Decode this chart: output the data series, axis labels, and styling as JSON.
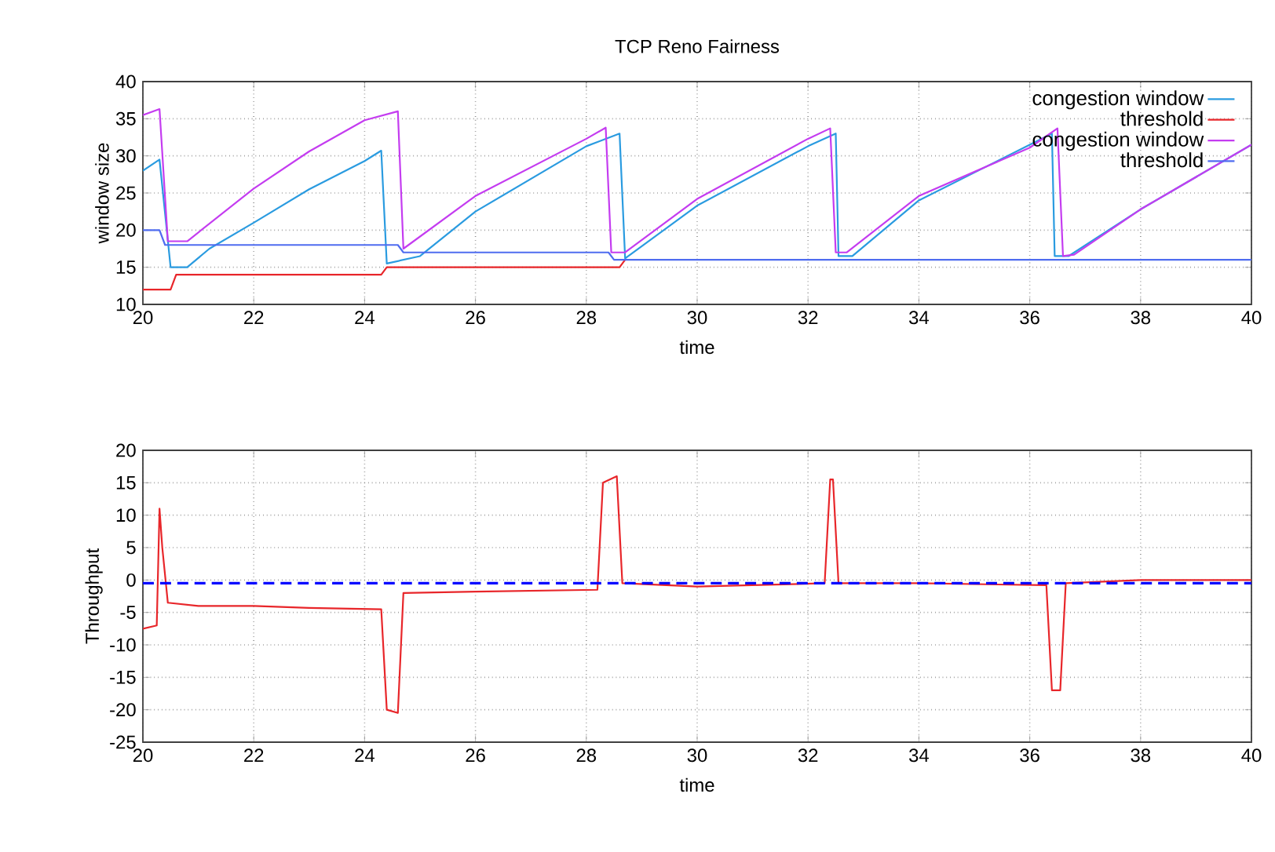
{
  "chart_data": [
    {
      "type": "line",
      "title": "TCP Reno Fairness",
      "xlabel": "time",
      "ylabel": "window size",
      "xlim": [
        20,
        40
      ],
      "ylim": [
        10,
        40
      ],
      "xticks": [
        20,
        22,
        24,
        26,
        28,
        30,
        32,
        34,
        36,
        38,
        40
      ],
      "yticks": [
        10,
        15,
        20,
        25,
        30,
        35,
        40
      ],
      "grid": true,
      "legend": "top right",
      "marker": "none",
      "series": [
        {
          "name": "congestion window",
          "color": "#2a9be0",
          "x": [
            20,
            20.3,
            20.5,
            20.8,
            21.2,
            22,
            23,
            24,
            24.3,
            24.4,
            25,
            26,
            28,
            28.6,
            28.7,
            30,
            32,
            32.5,
            32.55,
            32.8,
            34,
            36,
            36.4,
            36.45,
            36.7,
            38,
            40
          ],
          "values": [
            28,
            29.5,
            15,
            15,
            17.5,
            21,
            25.5,
            29.3,
            30.7,
            15.5,
            16.5,
            22.5,
            31.3,
            33,
            16.2,
            23.3,
            31.3,
            33,
            16.5,
            16.5,
            24,
            31.5,
            33,
            16.5,
            16.5,
            22.8,
            31.5
          ]
        },
        {
          "name": "threshold",
          "color": "#e8262a",
          "x": [
            20,
            20.5,
            20.6,
            24.3,
            24.4,
            28.6,
            28.7
          ],
          "values": [
            12,
            12,
            14,
            14,
            15,
            15,
            16
          ]
        },
        {
          "name": "congestion window",
          "color": "#c43cf0",
          "x": [
            20,
            20.3,
            20.45,
            20.8,
            22,
            23,
            24,
            24.6,
            24.7,
            26,
            28,
            28.35,
            28.45,
            28.7,
            30,
            32,
            32.4,
            32.5,
            32.7,
            34,
            36,
            36.5,
            36.6,
            36.8,
            38,
            40
          ],
          "values": [
            35.5,
            36.3,
            18.5,
            18.5,
            25.6,
            30.6,
            34.8,
            36,
            17.5,
            24.6,
            32.3,
            33.8,
            17,
            17,
            24.2,
            32.3,
            33.7,
            17,
            17,
            24.6,
            31.1,
            33.7,
            16.5,
            16.7,
            22.8,
            31.5
          ]
        },
        {
          "name": "threshold",
          "color": "#4f6cf0",
          "x": [
            20,
            20.3,
            20.4,
            24.6,
            24.7,
            28.4,
            28.5,
            40
          ],
          "values": [
            20,
            20,
            18,
            18,
            17,
            17,
            16,
            16
          ]
        }
      ]
    },
    {
      "type": "line",
      "xlabel": "time",
      "ylabel": "Throughput",
      "xlim": [
        20,
        40
      ],
      "ylim": [
        -25,
        20
      ],
      "xticks": [
        20,
        22,
        24,
        26,
        28,
        30,
        32,
        34,
        36,
        38,
        40
      ],
      "yticks": [
        -25,
        -20,
        -15,
        -10,
        -5,
        0,
        5,
        10,
        15,
        20
      ],
      "grid": true,
      "marker": "none",
      "ref_lines": [
        {
          "axis": "y",
          "value": -0.5,
          "color": "#0000ff",
          "line_style": "dashed"
        }
      ],
      "series": [
        {
          "color": "#e8262a",
          "x": [
            20,
            20.25,
            20.3,
            20.35,
            20.45,
            21,
            22,
            23,
            24.3,
            24.4,
            24.6,
            24.7,
            26,
            28.2,
            28.3,
            28.55,
            28.65,
            30,
            32.3,
            32.4,
            32.45,
            32.55,
            34,
            36.3,
            36.4,
            36.55,
            36.65,
            38,
            40
          ],
          "values": [
            -7.5,
            -7,
            11,
            5,
            -3.5,
            -4,
            -4,
            -4.3,
            -4.5,
            -20,
            -20.5,
            -2,
            -1.8,
            -1.5,
            15,
            16,
            -0.5,
            -1,
            -0.5,
            15.5,
            15.5,
            -0.5,
            -0.5,
            -0.8,
            -17,
            -17,
            -0.5,
            0,
            0
          ]
        }
      ]
    }
  ]
}
